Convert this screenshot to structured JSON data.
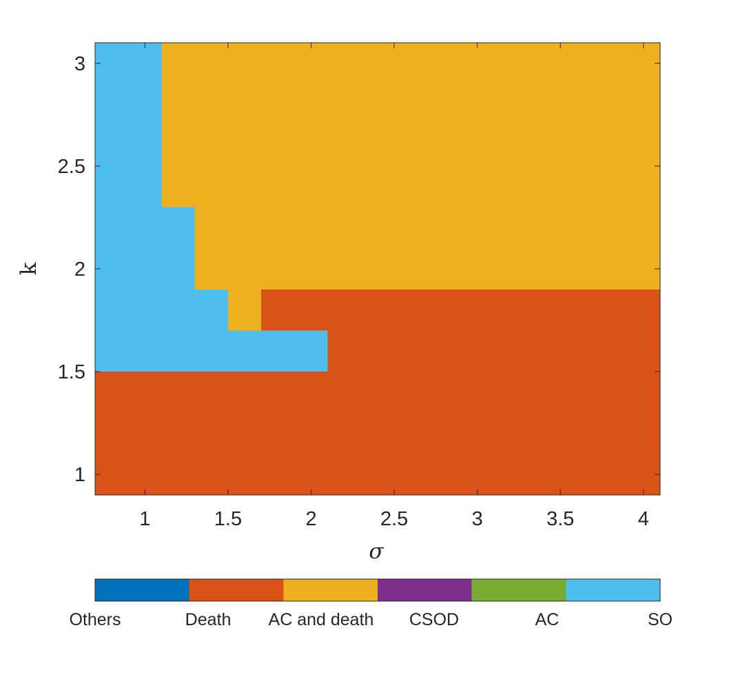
{
  "chart_data": {
    "type": "heatmap",
    "xlabel": "σ",
    "ylabel": "k",
    "xlim": [
      0.7,
      4.1
    ],
    "ylim": [
      0.9,
      3.1
    ],
    "xticks": [
      1,
      1.5,
      2,
      2.5,
      3,
      3.5,
      4
    ],
    "xtick_labels": [
      "1",
      "1.5",
      "2",
      "2.5",
      "3",
      "3.5",
      "4"
    ],
    "yticks": [
      1,
      1.5,
      2,
      2.5,
      3
    ],
    "ytick_labels": [
      "1",
      "1.5",
      "2",
      "2.5",
      "3"
    ],
    "categories": [
      {
        "name": "Others",
        "color": "#0072BD"
      },
      {
        "name": "Death",
        "color": "#D95319"
      },
      {
        "name": "AC and death",
        "color": "#EDB120"
      },
      {
        "name": "CSOD",
        "color": "#7E2F8E"
      },
      {
        "name": "AC",
        "color": "#77AC30"
      },
      {
        "name": "SO",
        "color": "#4DBEEE"
      }
    ],
    "regions": [
      {
        "category": "Death",
        "x": [
          0.7,
          4.1
        ],
        "y": [
          0.9,
          1.5
        ]
      },
      {
        "category": "Death",
        "x": [
          2.1,
          4.1
        ],
        "y": [
          1.5,
          1.7
        ]
      },
      {
        "category": "Death",
        "x": [
          1.7,
          4.1
        ],
        "y": [
          1.7,
          1.9
        ]
      },
      {
        "category": "SO",
        "x": [
          0.7,
          2.1
        ],
        "y": [
          1.5,
          1.7
        ]
      },
      {
        "category": "SO",
        "x": [
          0.7,
          1.5
        ],
        "y": [
          1.7,
          1.9
        ]
      },
      {
        "category": "AC and death",
        "x": [
          1.5,
          1.7
        ],
        "y": [
          1.7,
          1.9
        ]
      },
      {
        "category": "SO",
        "x": [
          0.7,
          1.3
        ],
        "y": [
          1.9,
          2.3
        ]
      },
      {
        "category": "AC and death",
        "x": [
          1.3,
          4.1
        ],
        "y": [
          1.9,
          2.3
        ]
      },
      {
        "category": "SO",
        "x": [
          0.7,
          1.1
        ],
        "y": [
          2.3,
          3.1
        ]
      },
      {
        "category": "AC and death",
        "x": [
          1.1,
          4.1
        ],
        "y": [
          2.3,
          3.1
        ]
      }
    ],
    "colorbar": {
      "labels": [
        "Others",
        "Death",
        "AC and death",
        "CSOD",
        "AC",
        "SO"
      ]
    }
  }
}
